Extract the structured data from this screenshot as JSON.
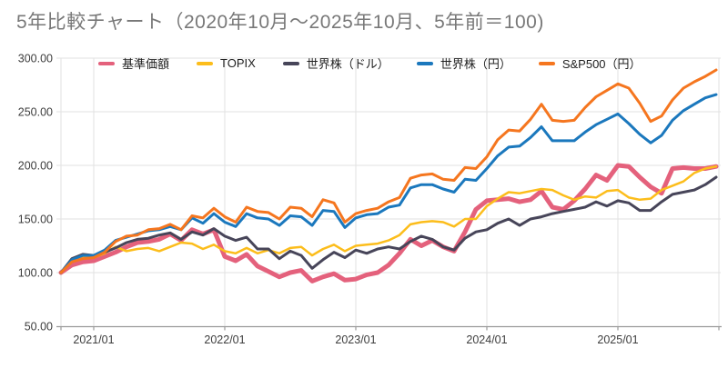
{
  "header": {
    "title": "5年比較チャート（2020年10月～2025年10月、5年前＝100)"
  },
  "chart_data": {
    "type": "line",
    "title": "5年比較チャート（2020年10月～2025年10月、5年前＝100)",
    "x": [
      "2020/10",
      "2020/11",
      "2020/12",
      "2021/01",
      "2021/02",
      "2021/03",
      "2021/04",
      "2021/05",
      "2021/06",
      "2021/07",
      "2021/08",
      "2021/09",
      "2021/10",
      "2021/11",
      "2021/12",
      "2022/01",
      "2022/02",
      "2022/03",
      "2022/04",
      "2022/05",
      "2022/06",
      "2022/07",
      "2022/08",
      "2022/09",
      "2022/10",
      "2022/11",
      "2022/12",
      "2023/01",
      "2023/02",
      "2023/03",
      "2023/04",
      "2023/05",
      "2023/06",
      "2023/07",
      "2023/08",
      "2023/09",
      "2023/10",
      "2023/11",
      "2023/12",
      "2024/01",
      "2024/02",
      "2024/03",
      "2024/04",
      "2024/05",
      "2024/06",
      "2024/07",
      "2024/08",
      "2024/09",
      "2024/10",
      "2024/11",
      "2024/12",
      "2025/01",
      "2025/02",
      "2025/03",
      "2025/04",
      "2025/05",
      "2025/06",
      "2025/07",
      "2025/08",
      "2025/09",
      "2025/10"
    ],
    "x_tick_labels": [
      "2021/01",
      "2022/01",
      "2023/01",
      "2024/01",
      "2025/01"
    ],
    "y_ticks": [
      "300.00",
      "250.00",
      "200.00",
      "150.00",
      "100.00",
      "50.00"
    ],
    "ylim": [
      50,
      300
    ],
    "baseline_value": 100,
    "grid": true,
    "legend_position": "top",
    "series": [
      {
        "name": "基準価額",
        "color": "#e4617c",
        "stroke_width": 5,
        "values": [
          100,
          107,
          110,
          111,
          115,
          119,
          124,
          128,
          129,
          131,
          136,
          130,
          140,
          136,
          140,
          115,
          111,
          117,
          106,
          101,
          96,
          100,
          102,
          92,
          96,
          99,
          93,
          94,
          98,
          100,
          107,
          118,
          131,
          125,
          130,
          124,
          120,
          138,
          159,
          167,
          168,
          169,
          166,
          168,
          176,
          161,
          159,
          167,
          178,
          191,
          186,
          200,
          199,
          189,
          180,
          174,
          197,
          198,
          197,
          197,
          199
        ]
      },
      {
        "name": "TOPIX",
        "color": "#fcbd1b",
        "stroke_width": 2.5,
        "values": [
          100,
          111,
          114,
          114,
          118,
          124,
          120,
          122,
          123,
          120,
          124,
          128,
          127,
          122,
          126,
          120,
          118,
          123,
          118,
          121,
          118,
          123,
          124,
          116,
          122,
          126,
          120,
          125,
          126,
          127,
          130,
          135,
          145,
          147,
          148,
          147,
          143,
          150,
          150,
          162,
          169,
          175,
          174,
          176,
          178,
          177,
          172,
          168,
          171,
          170,
          176,
          177,
          170,
          168,
          169,
          177,
          181,
          185,
          193,
          197,
          199
        ]
      },
      {
        "name": "世界株（ドル）",
        "color": "#474559",
        "stroke_width": 3,
        "values": [
          100,
          113,
          117,
          116,
          119,
          123,
          128,
          131,
          132,
          135,
          137,
          131,
          138,
          135,
          141,
          134,
          130,
          133,
          122,
          122,
          113,
          120,
          116,
          104,
          112,
          119,
          114,
          121,
          118,
          122,
          124,
          122,
          129,
          134,
          131,
          124,
          121,
          132,
          138,
          140,
          146,
          150,
          144,
          150,
          152,
          155,
          157,
          159,
          161,
          166,
          162,
          167,
          165,
          158,
          158,
          166,
          173,
          175,
          177,
          182,
          189
        ]
      },
      {
        "name": "世界株（円）",
        "color": "#1b78bd",
        "stroke_width": 3,
        "values": [
          100,
          112,
          116,
          116,
          121,
          130,
          133,
          136,
          139,
          140,
          143,
          140,
          151,
          146,
          155,
          147,
          143,
          155,
          151,
          150,
          144,
          153,
          152,
          144,
          158,
          157,
          142,
          151,
          154,
          155,
          161,
          163,
          179,
          182,
          182,
          178,
          175,
          187,
          186,
          197,
          209,
          217,
          218,
          226,
          236,
          223,
          223,
          223,
          231,
          238,
          243,
          248,
          239,
          229,
          221,
          228,
          242,
          251,
          257,
          263,
          266
        ]
      },
      {
        "name": "S&P500（円）",
        "color": "#f5761f",
        "stroke_width": 3,
        "values": [
          100,
          110,
          113,
          114,
          119,
          129,
          134,
          135,
          140,
          141,
          145,
          140,
          153,
          151,
          160,
          152,
          147,
          161,
          157,
          156,
          150,
          161,
          160,
          152,
          168,
          165,
          147,
          155,
          158,
          160,
          166,
          170,
          188,
          191,
          192,
          187,
          186,
          198,
          197,
          208,
          224,
          233,
          232,
          243,
          257,
          242,
          241,
          242,
          254,
          264,
          270,
          276,
          272,
          258,
          241,
          246,
          261,
          272,
          278,
          283,
          289
        ]
      }
    ],
    "style": {
      "grid_color": "#e2e2e2",
      "axis_color": "#9a9a9a",
      "tick_label_color": "#3d3d3d",
      "title_color": "#787878",
      "background": "#ffffff"
    }
  }
}
